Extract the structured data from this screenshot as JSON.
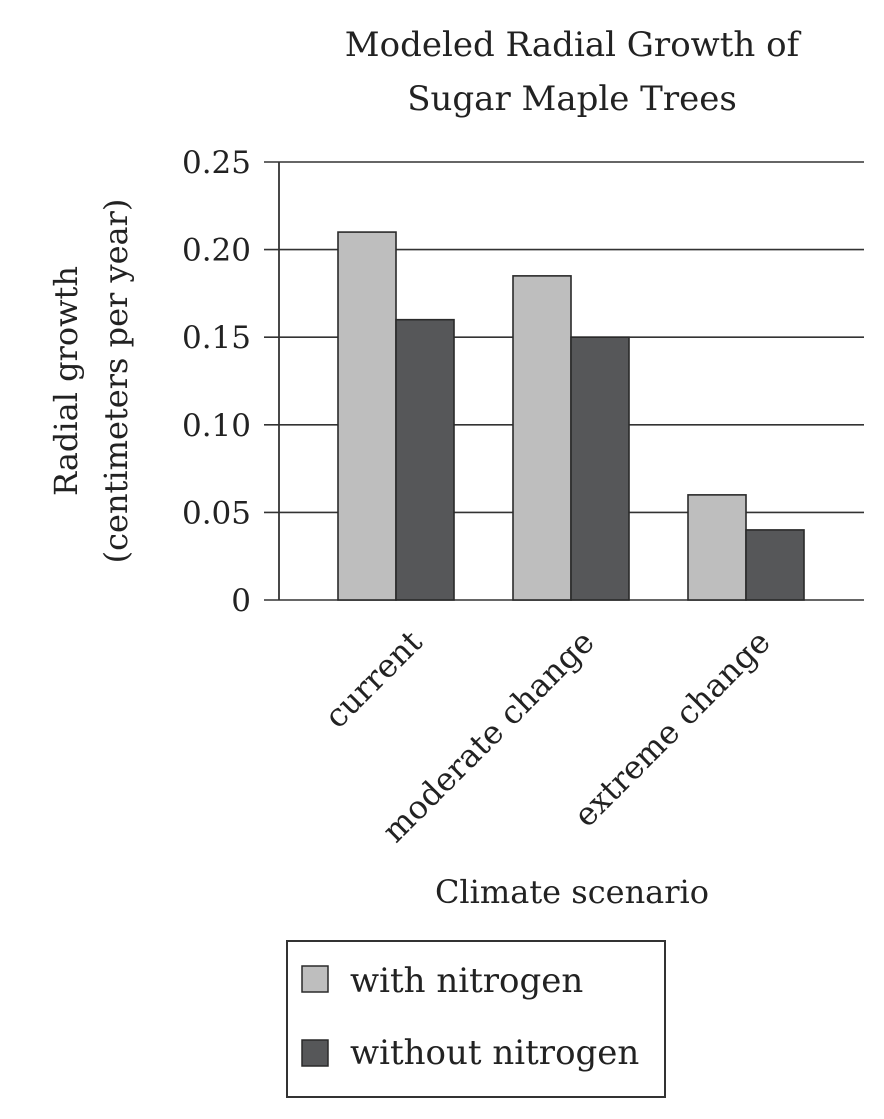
{
  "chart_data": {
    "type": "bar",
    "title": [
      "Modeled Radial Growth of",
      "Sugar Maple Trees"
    ],
    "xlabel": "Climate scenario",
    "ylabel": [
      "Radial growth",
      "(centimeters per year)"
    ],
    "categories": [
      "current",
      "moderate change",
      "extreme change"
    ],
    "series": [
      {
        "name": "with nitrogen",
        "values": [
          0.21,
          0.185,
          0.06
        ],
        "color": "#bebebe"
      },
      {
        "name": "without nitrogen",
        "values": [
          0.16,
          0.15,
          0.04
        ],
        "color": "#565759"
      }
    ],
    "yticks": [
      0,
      0.05,
      0.1,
      0.15,
      0.2,
      0.25
    ],
    "ytick_labels": [
      "0",
      "0.05",
      "0.10",
      "0.15",
      "0.20",
      "0.25"
    ],
    "ylim": [
      0,
      0.25
    ],
    "grid": "horizontal",
    "legend_position": "bottom-center",
    "axis_color": "#333333",
    "bar_edge_color": "#2a2a2a"
  }
}
